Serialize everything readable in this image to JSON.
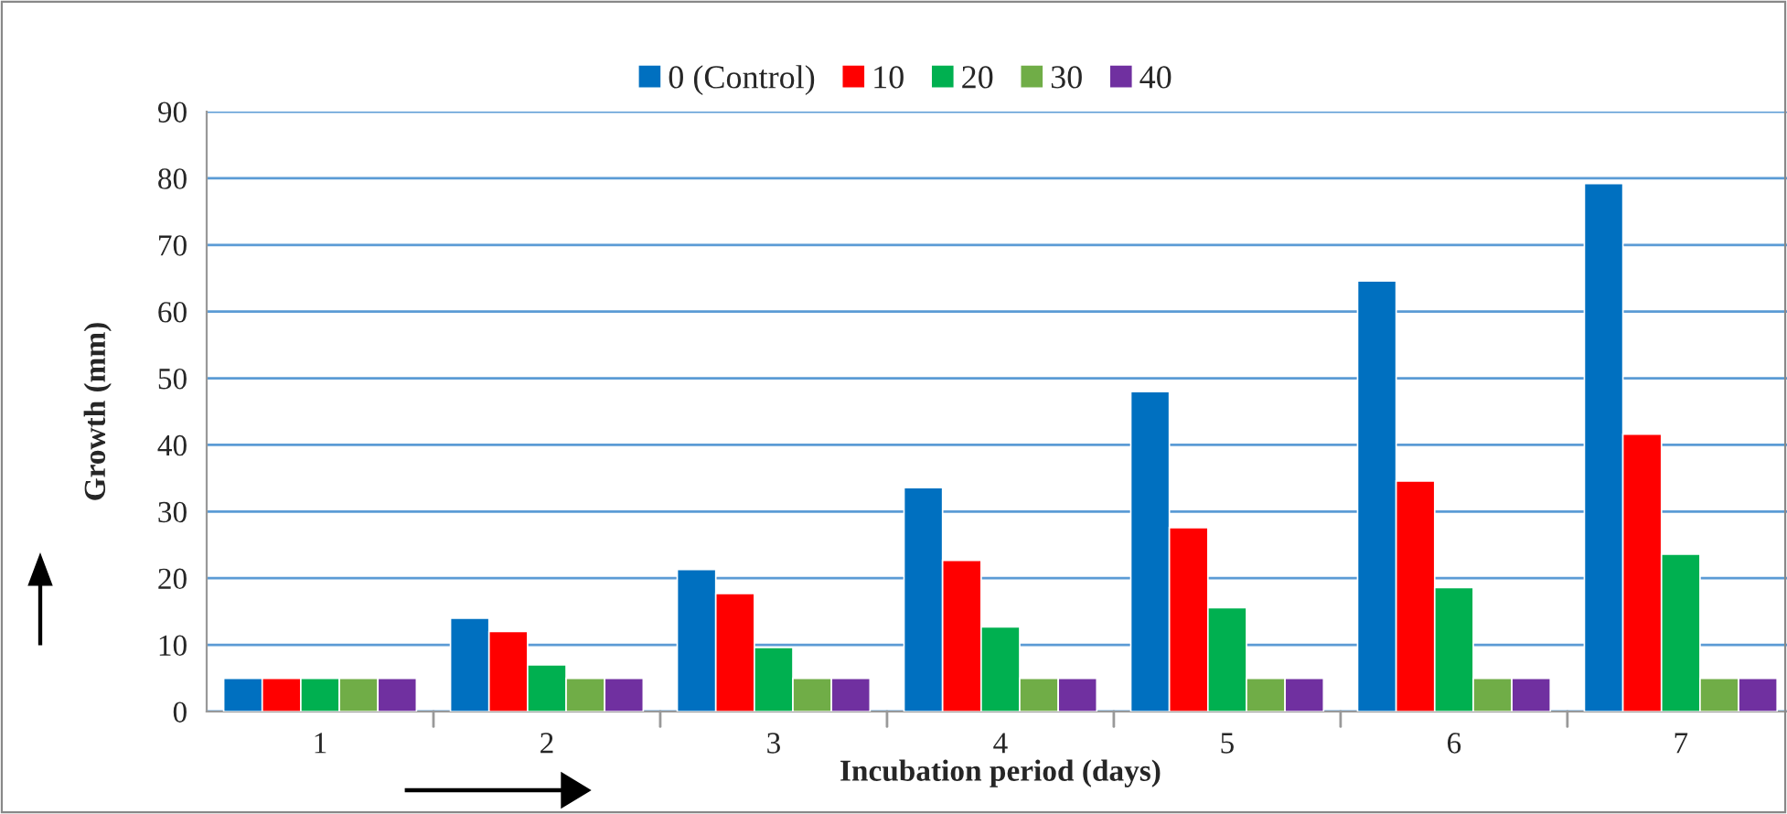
{
  "chart_data": {
    "type": "bar",
    "xlabel": "Incubation period (days)",
    "ylabel": "Growth (mm)",
    "categories": [
      "1",
      "2",
      "3",
      "4",
      "5",
      "6",
      "7"
    ],
    "series": [
      {
        "name": "0 (Control)",
        "color": "#0070c0",
        "values": [
          5,
          14,
          21.3,
          33.6,
          48,
          64.6,
          79.2
        ]
      },
      {
        "name": "10",
        "color": "#ff0000",
        "values": [
          5,
          12,
          17.7,
          22.7,
          27.6,
          34.6,
          41.6
        ]
      },
      {
        "name": "20",
        "color": "#00b050",
        "values": [
          5,
          7,
          9.6,
          12.7,
          15.6,
          18.6,
          23.6
        ]
      },
      {
        "name": "30",
        "color": "#70ad47",
        "values": [
          5,
          5,
          5,
          5,
          5,
          5,
          5
        ]
      },
      {
        "name": "40",
        "color": "#7030a0",
        "values": [
          5,
          5,
          5,
          5,
          5,
          5,
          5
        ]
      }
    ],
    "ylim": [
      0,
      90
    ],
    "yticks": [
      0,
      10,
      20,
      30,
      40,
      50,
      60,
      70,
      80,
      90
    ],
    "grid": "y",
    "legend": "top"
  }
}
